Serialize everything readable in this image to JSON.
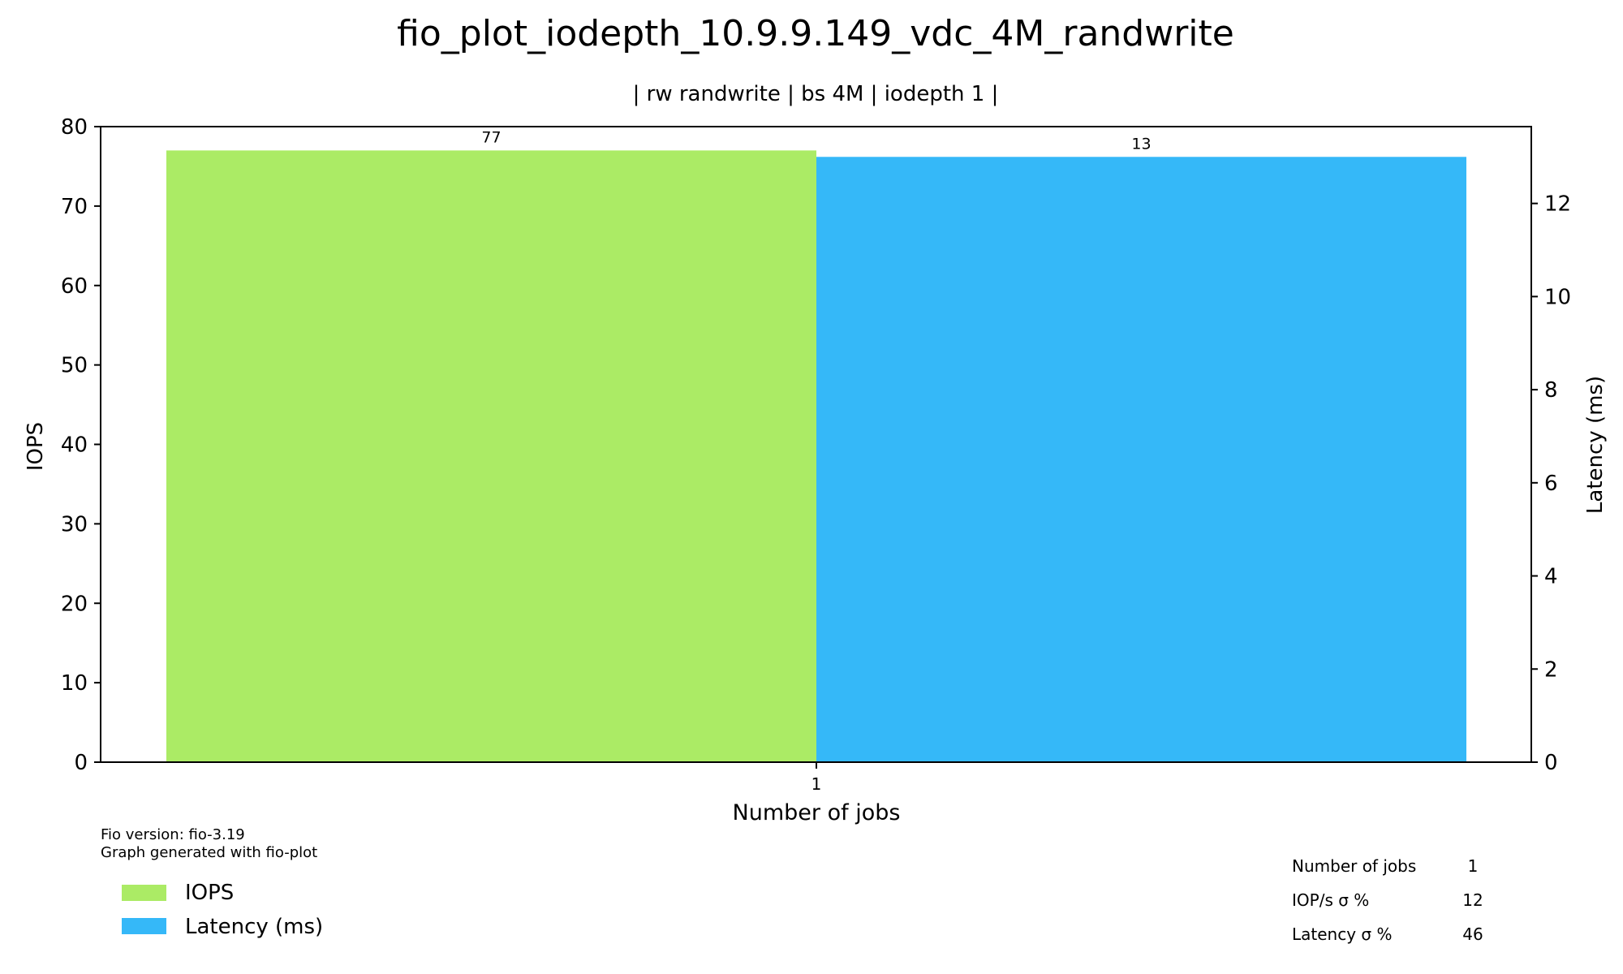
{
  "chart_data": {
    "type": "bar",
    "title": "fio_plot_iodepth_10.9.9.149_vdc_4M_randwrite",
    "subtitle": "| rw randwrite | bs 4M | iodepth 1 |",
    "xlabel": "Number of jobs",
    "ylabel_left": "IOPS",
    "ylabel_right": "Latency (ms)",
    "categories": [
      "1"
    ],
    "series": [
      {
        "name": "IOPS",
        "axis": "left",
        "values": [
          77
        ],
        "labels": [
          "77"
        ],
        "color": "#abeb65"
      },
      {
        "name": "Latency (ms)",
        "axis": "right",
        "values": [
          13
        ],
        "labels": [
          "13"
        ],
        "color": "#35b8f8"
      }
    ],
    "ylim_left": [
      0,
      80
    ],
    "yticks_left": [
      "0",
      "10",
      "20",
      "30",
      "40",
      "50",
      "60",
      "70",
      "80"
    ],
    "ylim_right": [
      0,
      13.65
    ],
    "yticks_right": [
      "0",
      "2",
      "4",
      "6",
      "8",
      "10",
      "12"
    ],
    "grid": false,
    "legend_placement": "bottom-left"
  },
  "footer": {
    "version_line": "Fio version: fio-3.19",
    "generator_line": "Graph generated with fio-plot"
  },
  "stats_table": {
    "rows": [
      {
        "label": "Number of jobs",
        "value": "1"
      },
      {
        "label": "IOP/s σ %",
        "value": "12"
      },
      {
        "label": "Latency σ %",
        "value": "46"
      }
    ]
  },
  "colors": {
    "iops": "#abeb65",
    "latency": "#35b8f8",
    "axis": "#000000"
  }
}
